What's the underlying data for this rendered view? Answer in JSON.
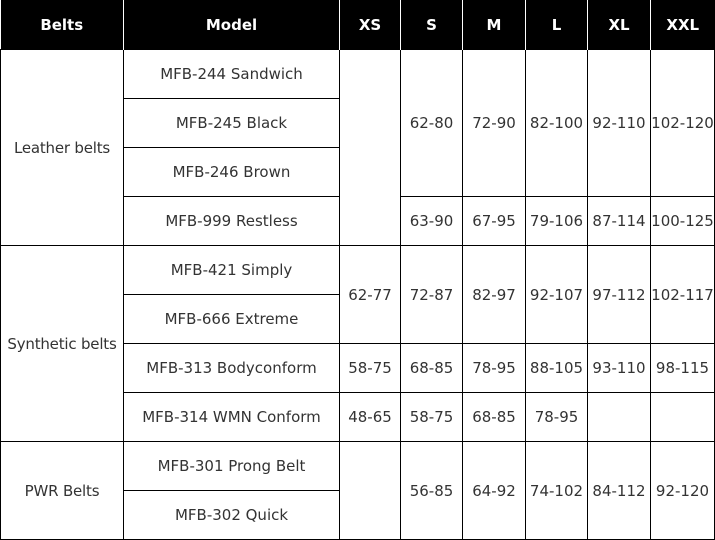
{
  "header": {
    "belts": "Belts",
    "model": "Model",
    "xs": "XS",
    "s": "S",
    "m": "M",
    "l": "L",
    "xl": "XL",
    "xxl": "XXL"
  },
  "groups": {
    "leather": "Leather belts",
    "synthetic": "Synthetic belts",
    "pwr": "PWR Belts"
  },
  "rows": [
    {
      "model": "MFB-244 Sandwich"
    },
    {
      "model": "MFB-245 Black"
    },
    {
      "model": "MFB-246 Brown"
    },
    {
      "model": "MFB-999 Restless"
    },
    {
      "model": "MFB-421 Simply"
    },
    {
      "model": "MFB-666 Extreme"
    },
    {
      "model": "MFB-313 Bodyconform"
    },
    {
      "model": "MFB-314 WMN Conform"
    },
    {
      "model": "MFB-301 Prong Belt"
    },
    {
      "model": "MFB-302 Quick"
    }
  ],
  "sizes": {
    "leather_244_246": {
      "xs": "",
      "s": "62-80",
      "m": "72-90",
      "l": "82-100",
      "xl": "92-110",
      "xxl": "102-120"
    },
    "leather_999": {
      "s": "63-90",
      "m": "67-95",
      "l": "79-106",
      "xl": "87-114",
      "xxl": "100-125"
    },
    "synthetic_421_666": {
      "xs": "62-77",
      "s": "72-87",
      "m": "82-97",
      "l": "92-107",
      "xl": "97-112",
      "xxl": "102-117"
    },
    "synthetic_313": {
      "xs": "58-75",
      "s": "68-85",
      "m": "78-95",
      "l": "88-105",
      "xl": "93-110",
      "xxl": "98-115"
    },
    "synthetic_314": {
      "xs": "48-65",
      "s": "58-75",
      "m": "68-85",
      "l": "78-95",
      "xl": "",
      "xxl": ""
    },
    "pwr": {
      "xs": "",
      "s": "56-85",
      "m": "64-92",
      "l": "74-102",
      "xl": "84-112",
      "xxl": "92-120"
    }
  }
}
